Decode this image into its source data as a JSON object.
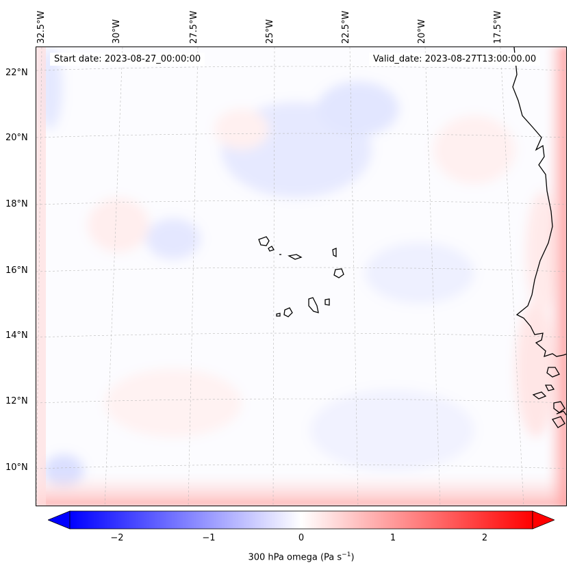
{
  "map": {
    "start_date": "Start date: 2023-08-27_00:00:00",
    "valid_date": "Valid_date: 2023-08-27T13:00:00.00",
    "lon_labels": [
      "32.5°W",
      "30°W",
      "27.5°W",
      "25°W",
      "22.5°W",
      "20°W",
      "17.5°W"
    ],
    "lat_labels": [
      "22°N",
      "20°N",
      "18°N",
      "16°N",
      "14°N",
      "12°N",
      "10°N"
    ],
    "colors": {
      "negative": "#0000ff",
      "zero": "#ffffff",
      "positive": "#ff0000",
      "coastline": "#000000"
    }
  },
  "colorbar": {
    "ticks": [
      "−2",
      "−1",
      "0",
      "1",
      "2"
    ],
    "tick_values": [
      -2,
      -1,
      0,
      1,
      2
    ],
    "range": [
      -2.6,
      2.6
    ],
    "label": "300 hPa omega (Pa s",
    "label_sup": "−1",
    "label_end": ")"
  }
}
